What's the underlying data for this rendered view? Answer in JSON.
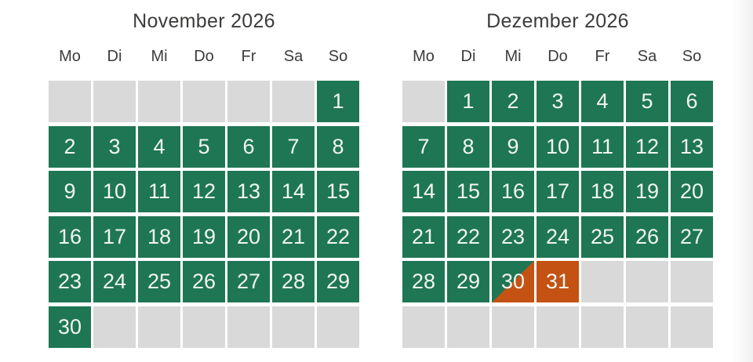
{
  "page": {
    "background": "#ffffff"
  },
  "colors": {
    "free": "#1e7654",
    "booked": "#c45212",
    "empty": "#d9d9d9",
    "day_text": "#f2f6f2",
    "heading_text": "#3c3c3b"
  },
  "calendars": [
    {
      "title": "November 2026",
      "weekdays": [
        "Mo",
        "Di",
        "Mi",
        "Do",
        "Fr",
        "Sa",
        "So"
      ],
      "cells": [
        [
          "",
          "empty"
        ],
        [
          "",
          "empty"
        ],
        [
          "",
          "empty"
        ],
        [
          "",
          "empty"
        ],
        [
          "",
          "empty"
        ],
        [
          "",
          "empty"
        ],
        [
          "1",
          "free"
        ],
        [
          "2",
          "free"
        ],
        [
          "3",
          "free"
        ],
        [
          "4",
          "free"
        ],
        [
          "5",
          "free"
        ],
        [
          "6",
          "free"
        ],
        [
          "7",
          "free"
        ],
        [
          "8",
          "free"
        ],
        [
          "9",
          "free"
        ],
        [
          "10",
          "free"
        ],
        [
          "11",
          "free"
        ],
        [
          "12",
          "free"
        ],
        [
          "13",
          "free"
        ],
        [
          "14",
          "free"
        ],
        [
          "15",
          "free"
        ],
        [
          "16",
          "free"
        ],
        [
          "17",
          "free"
        ],
        [
          "18",
          "free"
        ],
        [
          "19",
          "free"
        ],
        [
          "20",
          "free"
        ],
        [
          "21",
          "free"
        ],
        [
          "22",
          "free"
        ],
        [
          "23",
          "free"
        ],
        [
          "24",
          "free"
        ],
        [
          "25",
          "free"
        ],
        [
          "26",
          "free"
        ],
        [
          "27",
          "free"
        ],
        [
          "28",
          "free"
        ],
        [
          "29",
          "free"
        ],
        [
          "30",
          "free"
        ],
        [
          "",
          "empty"
        ],
        [
          "",
          "empty"
        ],
        [
          "",
          "empty"
        ],
        [
          "",
          "empty"
        ],
        [
          "",
          "empty"
        ],
        [
          "",
          "empty"
        ]
      ]
    },
    {
      "title": "Dezember 2026",
      "weekdays": [
        "Mo",
        "Di",
        "Mi",
        "Do",
        "Fr",
        "Sa",
        "So"
      ],
      "cells": [
        [
          "",
          "empty"
        ],
        [
          "1",
          "free"
        ],
        [
          "2",
          "free"
        ],
        [
          "3",
          "free"
        ],
        [
          "4",
          "free"
        ],
        [
          "5",
          "free"
        ],
        [
          "6",
          "free"
        ],
        [
          "7",
          "free"
        ],
        [
          "8",
          "free"
        ],
        [
          "9",
          "free"
        ],
        [
          "10",
          "free"
        ],
        [
          "11",
          "free"
        ],
        [
          "12",
          "free"
        ],
        [
          "13",
          "free"
        ],
        [
          "14",
          "free"
        ],
        [
          "15",
          "free"
        ],
        [
          "16",
          "free"
        ],
        [
          "17",
          "free"
        ],
        [
          "18",
          "free"
        ],
        [
          "19",
          "free"
        ],
        [
          "20",
          "free"
        ],
        [
          "21",
          "free"
        ],
        [
          "22",
          "free"
        ],
        [
          "23",
          "free"
        ],
        [
          "24",
          "free"
        ],
        [
          "25",
          "free"
        ],
        [
          "26",
          "free"
        ],
        [
          "27",
          "free"
        ],
        [
          "28",
          "free"
        ],
        [
          "29",
          "free"
        ],
        [
          "30",
          "changeover"
        ],
        [
          "31",
          "booked"
        ],
        [
          "",
          "empty"
        ],
        [
          "",
          "empty"
        ],
        [
          "",
          "empty"
        ],
        [
          "",
          "empty"
        ],
        [
          "",
          "empty"
        ],
        [
          "",
          "empty"
        ],
        [
          "",
          "empty"
        ],
        [
          "",
          "empty"
        ],
        [
          "",
          "empty"
        ],
        [
          "",
          "empty"
        ]
      ]
    }
  ]
}
